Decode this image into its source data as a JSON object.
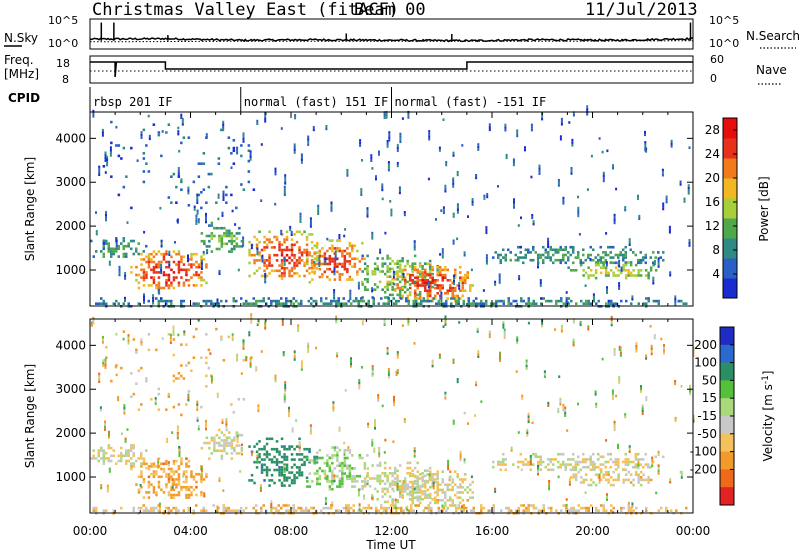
{
  "chart_data": {
    "type": "heatmap",
    "title": {
      "radar": "Christmas Valley East (fitACF)",
      "beam": "Beam 00",
      "date": "11/Jul/2013"
    },
    "xlabel": "Time UT",
    "x_ticks": [
      "00:00",
      "04:00",
      "08:00",
      "12:00",
      "16:00",
      "20:00",
      "00:00"
    ],
    "xlim_hours": [
      0,
      24
    ],
    "ylabel": "Slant Range [km]",
    "ylim": [
      180,
      4600
    ],
    "y_ticks": [
      1000,
      2000,
      3000,
      4000
    ],
    "top_panels": {
      "nsky": {
        "label": "N.Sky",
        "right_label": "N.Search",
        "left_ticks": [
          "10^5",
          "10^0"
        ],
        "right_ticks": [
          "10^5",
          "10^0"
        ],
        "series_solid": [
          [
            0,
            1.5
          ],
          [
            3,
            1.6
          ],
          [
            6,
            1.3
          ],
          [
            9,
            1.4
          ],
          [
            12,
            1.3
          ],
          [
            15,
            1.2
          ],
          [
            18,
            1.4
          ],
          [
            21,
            1.3
          ],
          [
            24,
            1.6
          ]
        ],
        "series_dotted": [
          [
            0,
            1.0
          ],
          [
            6,
            1.1
          ],
          [
            12,
            1.1
          ],
          [
            18,
            1.1
          ],
          [
            24,
            1.2
          ]
        ]
      },
      "freq": {
        "label": "Freq.",
        "units": "[MHz]",
        "right_label": "Nave",
        "left_ticks": [
          "18",
          "8"
        ],
        "right_ticks": [
          "60",
          "0"
        ],
        "freq_series": [
          [
            0,
            16.5
          ],
          [
            1.0,
            16.5
          ],
          [
            1.0,
            9.0
          ],
          [
            1.05,
            16.5
          ],
          [
            3.0,
            16.5
          ],
          [
            3.0,
            13.0
          ],
          [
            15.0,
            13.0
          ],
          [
            15.0,
            16.5
          ],
          [
            24,
            16.5
          ]
        ],
        "nave_series": [
          [
            0,
            12.0
          ],
          [
            24,
            12.0
          ]
        ]
      },
      "cpid": {
        "label": "CPID",
        "modes": [
          {
            "start": 0.0,
            "text": "rbsp 201 IF"
          },
          {
            "start": 6.0,
            "text": "normal (fast) 151 IF"
          },
          {
            "start": 12.0,
            "text": "normal (fast) -151 IF"
          }
        ]
      }
    },
    "power": {
      "colorbar_label": "Power [dB]",
      "ticks": [
        4,
        8,
        12,
        16,
        20,
        24,
        28
      ],
      "range": [
        0,
        30
      ],
      "colors": [
        "#1a2ccf",
        "#2a5fc4",
        "#2f8a84",
        "#4fa84c",
        "#a6cf3a",
        "#f2b824",
        "#f27a1c",
        "#e8311a",
        "#e60d0d"
      ]
    },
    "velocity": {
      "colorbar_label": "Velocity [m s^-1]",
      "ticks": [
        200,
        100,
        50,
        15,
        -15,
        -50,
        -100,
        -200
      ],
      "colors": [
        "#1e2bc4",
        "#2a6acf",
        "#2b8f64",
        "#53c13a",
        "#a9d97b",
        "#c8c8c8",
        "#f5c15a",
        "#f29a2a",
        "#ee6a1a",
        "#e32222"
      ]
    },
    "echo_regions": [
      {
        "name": "A",
        "t0": 0.0,
        "t1": 2.2,
        "r0": 1300,
        "r1": 1750,
        "p": 9,
        "v": 0
      },
      {
        "name": "B",
        "t0": 1.6,
        "t1": 4.6,
        "r0": 550,
        "r1": 1450,
        "p": 23,
        "v": -60
      },
      {
        "name": "C",
        "t0": 4.4,
        "t1": 6.0,
        "r0": 1400,
        "r1": 2100,
        "p": 11,
        "v": -5
      },
      {
        "name": "D",
        "t0": 6.3,
        "t1": 9.0,
        "r0": 800,
        "r1": 1900,
        "p": 22,
        "v": 160
      },
      {
        "name": "E",
        "t0": 8.6,
        "t1": 11.0,
        "r0": 700,
        "r1": 1700,
        "p": 21,
        "v": 45
      },
      {
        "name": "F",
        "t0": 10.8,
        "t1": 13.8,
        "r0": 400,
        "r1": 1350,
        "p": 13,
        "v": 5
      },
      {
        "name": "G",
        "t0": 12.0,
        "t1": 15.2,
        "r0": 300,
        "r1": 1150,
        "p": 22,
        "v": -10
      },
      {
        "name": "H",
        "t0": 16.0,
        "t1": 22.8,
        "r0": 1150,
        "r1": 1550,
        "p": 9,
        "v": -5
      },
      {
        "name": "I",
        "t0": 19.0,
        "t1": 22.5,
        "r0": 800,
        "r1": 1200,
        "p": 14,
        "v": -10
      },
      {
        "name": "J",
        "t0": 0.0,
        "t1": 24.0,
        "r0": 180,
        "r1": 380,
        "p": 8,
        "v": -30
      },
      {
        "name": "K",
        "t0": 0.5,
        "t1": 6.5,
        "r0": 2400,
        "r1": 4400,
        "p": 6,
        "v": -40
      }
    ]
  }
}
